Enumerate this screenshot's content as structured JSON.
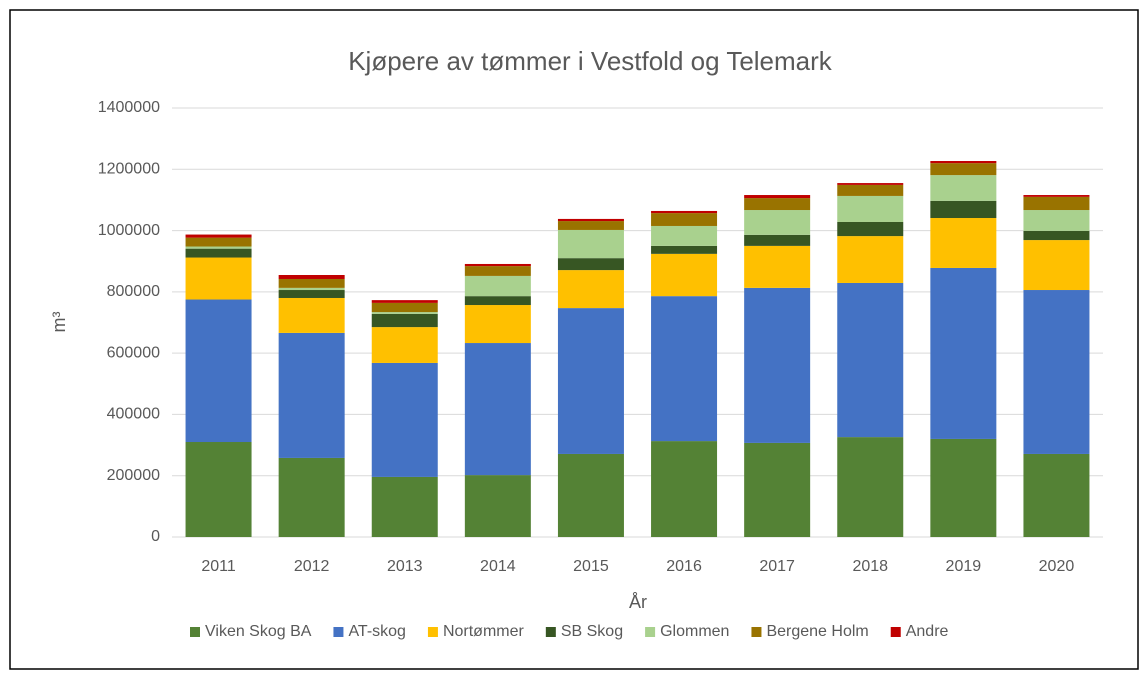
{
  "chart_data": {
    "type": "stacked_bar",
    "title": "Kjøpere av tømmer i Vestfold og Telemark",
    "x_label": "År",
    "y_label": "m³",
    "categories": [
      "2011",
      "2012",
      "2013",
      "2014",
      "2015",
      "2016",
      "2017",
      "2018",
      "2019",
      "2020"
    ],
    "series": [
      {
        "name": "Viken Skog BA",
        "color": "#548235",
        "values": [
          310000,
          258000,
          196000,
          202000,
          271000,
          313000,
          307000,
          326000,
          320000,
          271000
        ]
      },
      {
        "name": "AT-skog",
        "color": "#4472c4",
        "values": [
          465000,
          408000,
          372000,
          431000,
          476000,
          473000,
          506000,
          503000,
          558000,
          535000
        ]
      },
      {
        "name": "Nortømmer",
        "color": "#ffc000",
        "values": [
          137000,
          114000,
          117000,
          124000,
          124000,
          138000,
          137000,
          153000,
          163000,
          163000
        ]
      },
      {
        "name": "SB Skog",
        "color": "#375623",
        "values": [
          29000,
          26000,
          43000,
          29000,
          39000,
          26000,
          36000,
          46000,
          56000,
          30000
        ]
      },
      {
        "name": "Glommen",
        "color": "#a9d18e",
        "values": [
          7000,
          7000,
          6000,
          66000,
          92000,
          65000,
          81000,
          85000,
          84000,
          68000
        ]
      },
      {
        "name": "Bergene Holm",
        "color": "#997300",
        "values": [
          29000,
          29000,
          30000,
          32000,
          29000,
          42000,
          39000,
          36000,
          39000,
          43000
        ]
      },
      {
        "name": "Andre",
        "color": "#c00000",
        "values": [
          10000,
          13000,
          9000,
          7000,
          7000,
          7000,
          10000,
          6000,
          7000,
          6000
        ]
      }
    ],
    "ylim": [
      0,
      1400000
    ],
    "yticks": [
      0,
      200000,
      400000,
      600000,
      800000,
      1000000,
      1200000,
      1400000
    ],
    "grid": true,
    "legend": "bottom"
  }
}
